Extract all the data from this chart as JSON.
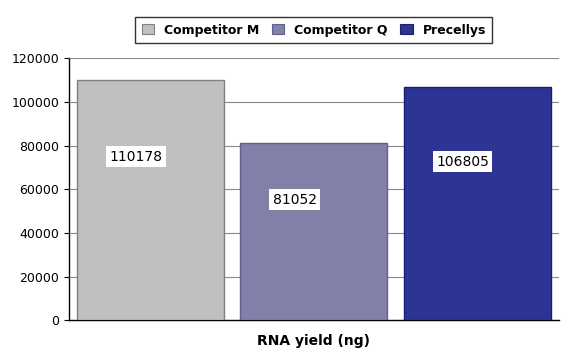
{
  "categories": [
    "Competitor M",
    "Competitor Q",
    "Precellys"
  ],
  "values": [
    110178,
    81052,
    106805
  ],
  "bar_colors": [
    "#c0c0c0",
    "#8080a8",
    "#2d3494"
  ],
  "bar_edge_colors": [
    "#808080",
    "#606090",
    "#1a1f6a"
  ],
  "xlabel": "RNA yield (ng)",
  "ylim": [
    0,
    120000
  ],
  "yticks": [
    0,
    20000,
    40000,
    60000,
    80000,
    100000,
    120000
  ],
  "legend_labels": [
    "Competitor M",
    "Competitor Q",
    "Precellys"
  ],
  "legend_colors": [
    "#c0c0c0",
    "#8080a8",
    "#2d3494"
  ],
  "legend_edge_colors": [
    "#808080",
    "#606090",
    "#1a1f6a"
  ],
  "label_fontsize": 10,
  "tick_fontsize": 9,
  "legend_fontsize": 9,
  "value_fontsize": 10,
  "background_color": "#ffffff",
  "grid_color": "#888888"
}
